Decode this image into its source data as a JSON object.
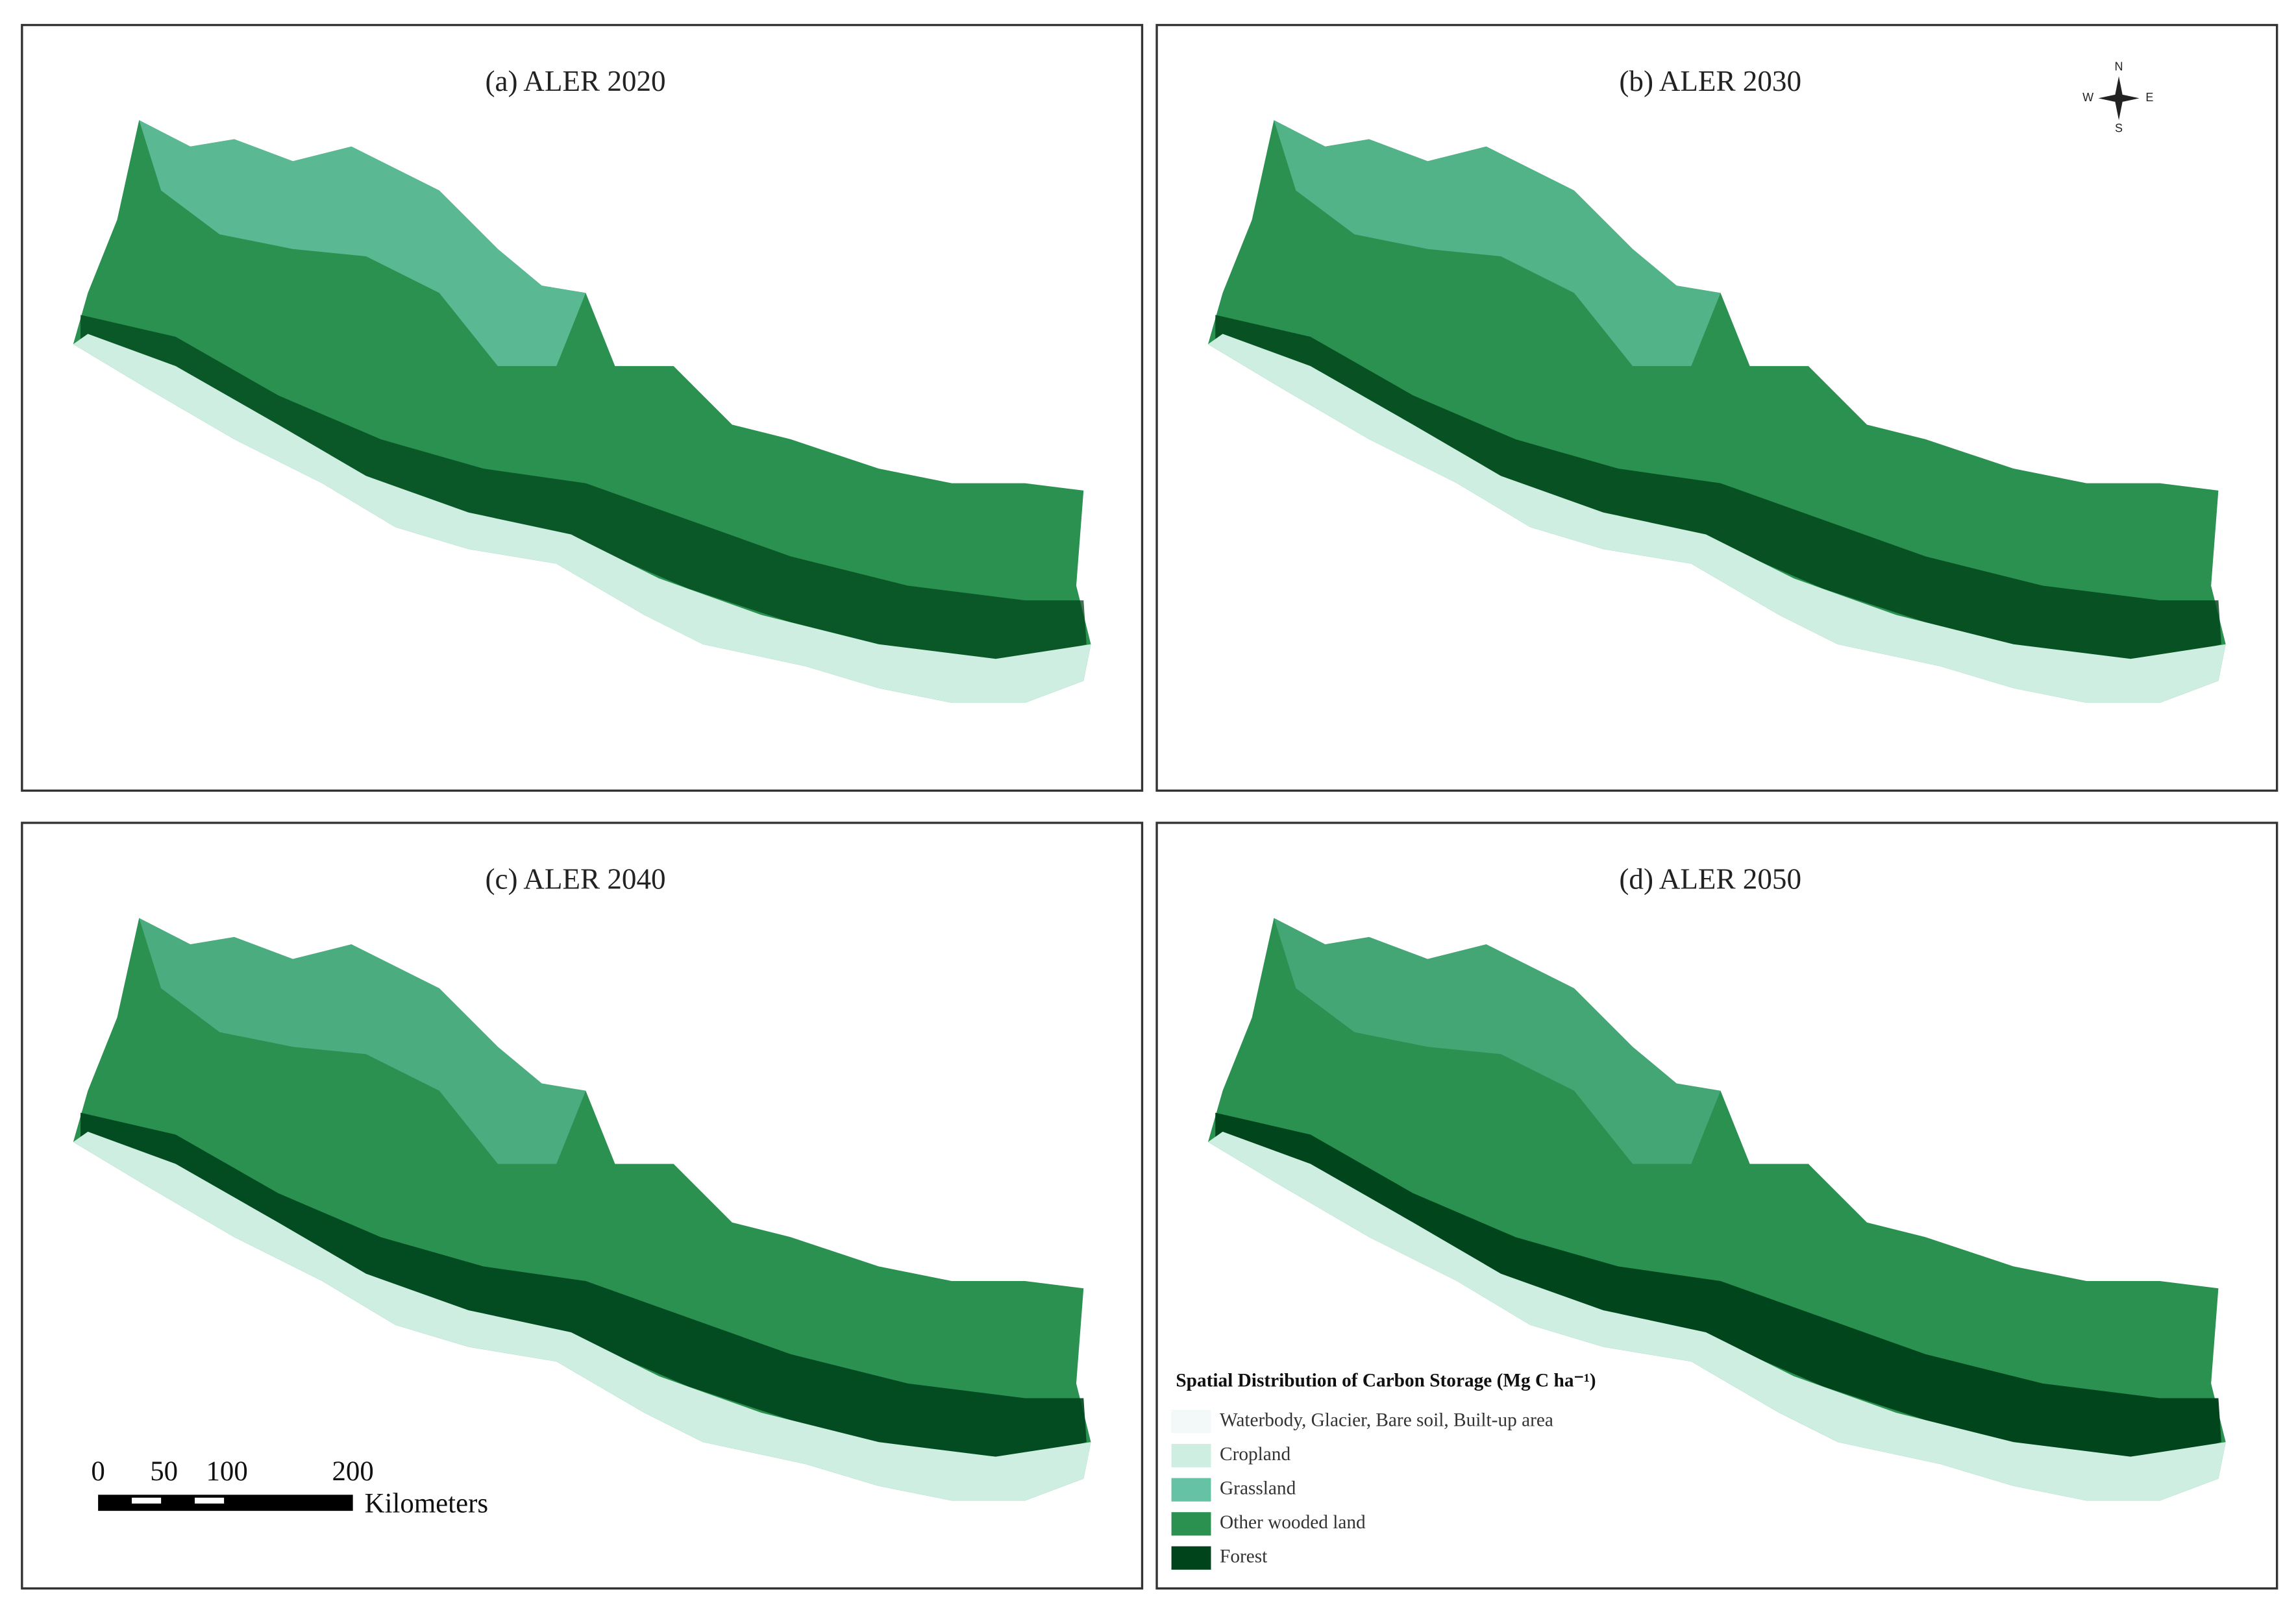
{
  "panels": [
    {
      "title": "(a) ALER 2020"
    },
    {
      "title": "(b) ALER 2030"
    },
    {
      "title": "(c) ALER 2040"
    },
    {
      "title": "(d) ALER 2050"
    }
  ],
  "compass": {
    "n": "N",
    "s": "S",
    "w": "W",
    "e": "E"
  },
  "scale_bar": {
    "ticks": [
      "0",
      "50",
      "100",
      "200"
    ],
    "unit": "Kilometers"
  },
  "legend": {
    "title": "Spatial Distribution of Carbon Storage (Mg C ha⁻¹)",
    "items": [
      {
        "label": "Waterbody, Glacier, Bare soil, Built-up area",
        "color": "#f2f9f8"
      },
      {
        "label": "Cropland",
        "color": "#cdeee1"
      },
      {
        "label": "Grassland",
        "color": "#66c2a4"
      },
      {
        "label": "Other wooded land",
        "color": "#2a9150"
      },
      {
        "label": "Forest",
        "color": "#00441b"
      }
    ]
  }
}
